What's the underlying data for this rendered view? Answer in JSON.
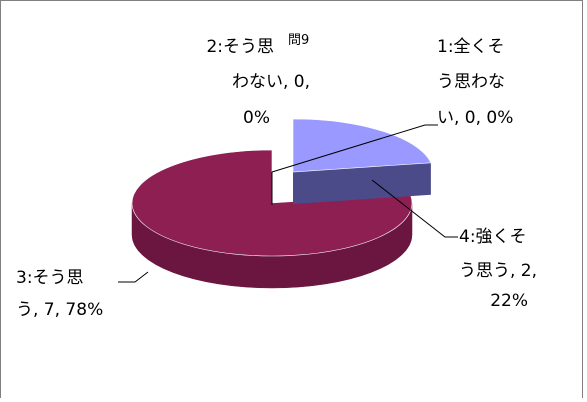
{
  "chart_data": {
    "type": "pie",
    "title": "問9",
    "categories": [
      "1:全くそう思わない",
      "2:そう思わない",
      "3:そう思う",
      "4:強くそう思う"
    ],
    "values": [
      0,
      0,
      7,
      2
    ],
    "percents": [
      "0%",
      "0%",
      "78%",
      "22%"
    ],
    "colors": {
      "strongly_agree_top": "#9999ff",
      "strongly_agree_side": "#4b4b8a",
      "agree_top": "#8e1f52",
      "agree_side": "#6a1640",
      "leader": "#000000"
    },
    "labels": {
      "cat1": {
        "lines": [
          "1:全くそ",
          "う思わな",
          "い, 0, 0%"
        ]
      },
      "cat2": {
        "lines": [
          "2:そう思",
          "わない, 0,",
          "0%"
        ]
      },
      "cat3": {
        "lines": [
          "3:そう思",
          "う, 7, 78%"
        ]
      },
      "cat4": {
        "lines": [
          "4:強くそ",
          "う思う, 2,",
          "22%"
        ]
      }
    }
  }
}
